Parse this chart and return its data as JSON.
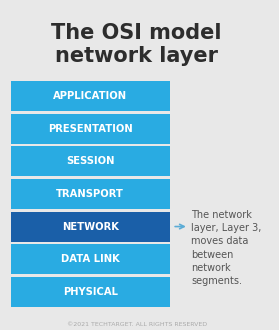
{
  "title_line1": "The OSI model",
  "title_line2": "network layer",
  "title_fontsize": 15,
  "title_color": "#2d2d2d",
  "background_color": "#e8e8e8",
  "layers": [
    "APPLICATION",
    "PRESENTATION",
    "SESSION",
    "TRANSPORT",
    "NETWORK",
    "DATA LINK",
    "PHYSICAL"
  ],
  "layer_colors": [
    "#29abe2",
    "#29abe2",
    "#29abe2",
    "#29abe2",
    "#1a5fa8",
    "#29abe2",
    "#29abe2"
  ],
  "layer_text_color": "#ffffff",
  "layer_fontsize": 7.2,
  "annotation_text": "The network\nlayer, Layer 3,\nmoves data\nbetween\nnetwork\nsegments.",
  "annotation_fontsize": 7.0,
  "annotation_color": "#555555",
  "arrow_color": "#5bacd6",
  "footer_text": "©2021 TECHTARGET. ALL RIGHTS RESERVED",
  "footer_fontsize": 4.5,
  "footer_color": "#aaaaaa"
}
